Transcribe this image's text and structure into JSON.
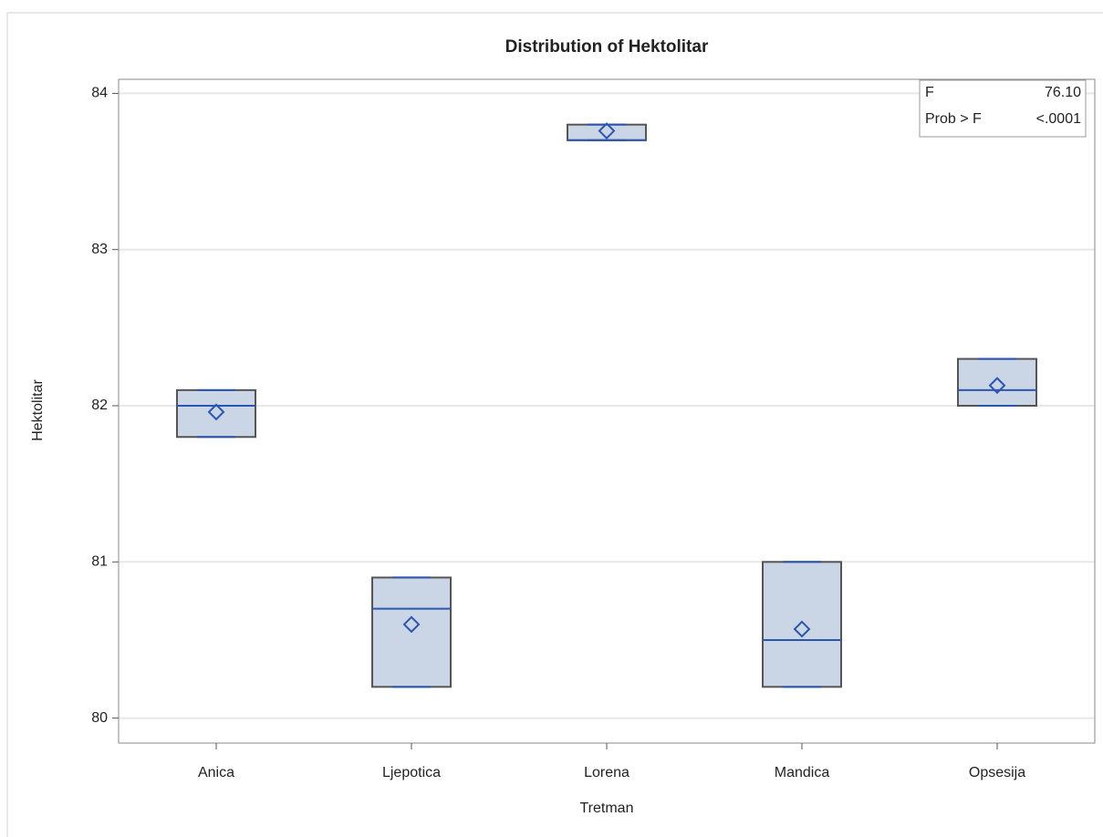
{
  "chart_data": {
    "type": "box",
    "title": "Distribution of Hektolitar",
    "x_label": "Tretman",
    "y_label": "Hektolitar",
    "categories": [
      "Anica",
      "Ljepotica",
      "Lorena",
      "Mandica",
      "Opsesija"
    ],
    "min": [
      81.8,
      80.2,
      83.7,
      80.2,
      82.0
    ],
    "q1": [
      81.8,
      80.2,
      83.7,
      80.2,
      82.0
    ],
    "median": [
      82.0,
      80.7,
      83.7,
      80.5,
      82.1
    ],
    "q3": [
      82.1,
      80.9,
      83.8,
      81.0,
      82.3
    ],
    "max": [
      82.1,
      80.9,
      83.8,
      81.0,
      82.3
    ],
    "mean": [
      81.96,
      80.6,
      83.76,
      80.57,
      82.13
    ],
    "color": "#cad5e5",
    "line_color": "#2b56b0",
    "ylim": [
      79.84,
      84.09
    ],
    "yticks": [
      80,
      81,
      82,
      83,
      84
    ],
    "grid": true,
    "inset": [
      [
        "F",
        "76.10"
      ],
      [
        "Prob > F",
        "<.0001"
      ]
    ]
  }
}
